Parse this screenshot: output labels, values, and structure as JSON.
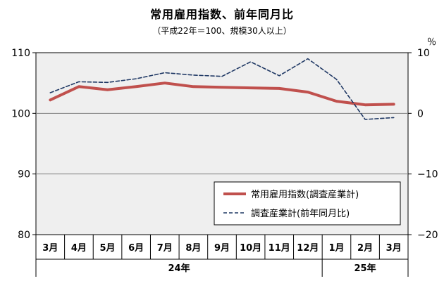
{
  "chart": {
    "title": "常用雇用指数、前年同月比",
    "subtitle": "（平成22年＝100、規模30人以上）",
    "right_unit": "％"
  },
  "chart_data": {
    "type": "line",
    "categories": [
      "3月",
      "4月",
      "5月",
      "6月",
      "7月",
      "8月",
      "9月",
      "10月",
      "11月",
      "12月",
      "1月",
      "2月",
      "3月"
    ],
    "year_groups": [
      {
        "label": "24年",
        "start": 0,
        "end": 9
      },
      {
        "label": "25年",
        "start": 10,
        "end": 12
      }
    ],
    "y_left": {
      "min": 80,
      "max": 110,
      "ticks": [
        80,
        90,
        100,
        110
      ]
    },
    "y_right": {
      "min": -20,
      "max": 10,
      "ticks": [
        -20,
        -10,
        0,
        10
      ]
    },
    "grid": "horizontal",
    "legend_position": "bottom-right",
    "series": [
      {
        "name": "常用雇用指数(調査産業計)",
        "axis": "left",
        "color": "#c0504d",
        "style": "solid",
        "values": [
          102.2,
          104.4,
          103.9,
          104.4,
          105.0,
          104.4,
          104.3,
          104.2,
          104.1,
          103.5,
          102.0,
          101.4,
          101.5
        ]
      },
      {
        "name": "調査産業計(前年同月比)",
        "axis": "right",
        "color": "#1f3864",
        "style": "dashed",
        "values": [
          3.4,
          5.2,
          5.1,
          5.7,
          6.7,
          6.3,
          6.1,
          8.5,
          6.2,
          9.0,
          5.6,
          -1.0,
          -0.7
        ]
      }
    ]
  }
}
